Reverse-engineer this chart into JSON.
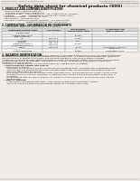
{
  "bg_color": "#f0ede8",
  "page_bg": "#f8f6f2",
  "header_left": "Product Name: Lithium Ion Battery Cell",
  "header_right_line1": "Substance Number: MB15E03SLPV1",
  "header_right_line2": "Established / Revision: Dec.7.2010",
  "title": "Safety data sheet for chemical products (SDS)",
  "section1_title": "1. PRODUCT AND COMPANY IDENTIFICATION",
  "section1_lines": [
    "  • Product name: Lithium Ion Battery Cell",
    "  • Product code: Cylindrical-type cell",
    "     (IFR18650U, IFR18650L, IFR18650A)",
    "  • Company name:    Sanyo Electric Co., Ltd., Mobile Energy Company",
    "  • Address:          2001  Kamitaikanuri, Sumoto-City, Hyogo, Japan",
    "  • Telephone number:   +81-799-26-4111",
    "  • Fax number:  +81-799-26-4121",
    "  • Emergency telephone number (daytime): +81-799-26-3962",
    "                                    (Night and holiday): +81-799-26-4121"
  ],
  "section2_title": "2. COMPOSITION / INFORMATION ON INGREDIENTS",
  "section2_intro": "  • Substance or preparation: Preparation",
  "section2_sub": "    • Information about the chemical nature of product:",
  "table_headers": [
    "Component/chemical name",
    "CAS number",
    "Concentration /\nConcentration range",
    "Classification and\nhazard labeling"
  ],
  "table_rows": [
    [
      "Several name",
      "-",
      "-",
      "-"
    ],
    [
      "Lithium cobalt oxide\n(LiMn-Co-PbO2x)",
      "-",
      "30-60%",
      "-"
    ],
    [
      "Iron",
      "7439-89-6",
      "15-25%",
      "-"
    ],
    [
      "Aluminum",
      "7429-90-5",
      "2-5%",
      "-"
    ],
    [
      "Graphite\n(Metal in graphite-1)\n(Al-film as graphite-1)",
      "7782-42-5\n7429-90-5",
      "10-20%",
      "-"
    ],
    [
      "Copper",
      "7440-50-8",
      "5-15%",
      "Sensitization of the skin\ngroup No.2"
    ],
    [
      "Organic electrolyte",
      "-",
      "10-20%",
      "Inflammable liquid"
    ]
  ],
  "section3_title": "3. HAZARDS IDENTIFICATION",
  "section3_lines": [
    "For the battery cell, chemical materials are stored in a hermetically sealed metal case, designed to withstand",
    "temperature changes and pressure variations during normal use. As a result, during normal use, there is no",
    "physical danger of ignition or explosion and thermos-changes of hazardous materials leakage.",
    "  However, if exposed to a fire, added mechanical shocks, decomposed, written interior without my measure,",
    "the gas smoke cannot be operated. The battery cell case will be breached if fire patterns, hazardous",
    "materials may be released.",
    "  Moreover, if heated strongly by the surrounding fire, acid gas may be emitted."
  ],
  "section3_bullet1": "  • Most important hazard and effects:",
  "section3_human": "    Human health effects:",
  "section3_detail_lines": [
    "      Inhalation: The release of the electrolyte has an anesthesia action and stimulates a respiratory tract.",
    "      Skin contact: The release of the electrolyte stimulates a skin. The electrolyte skin contact causes a",
    "      sore and stimulation on the skin.",
    "      Eye contact: The release of the electrolyte stimulates eyes. The electrolyte eye contact causes a sore",
    "      and stimulation on the eye. Especially, a substance that causes a strong inflammation of the eyes is",
    "      contained.",
    "      Environmental effects: Since a battery cell remains in the environment, do not throw out it into the",
    "      environment."
  ],
  "section3_bullet2": "  • Specific hazards:",
  "section3_specific_lines": [
    "      If the electrolyte contacts with water, it will generate detrimental hydrogen fluoride.",
    "      Since the sealed electrolyte is inflammable liquid, do not bring close to fire."
  ]
}
